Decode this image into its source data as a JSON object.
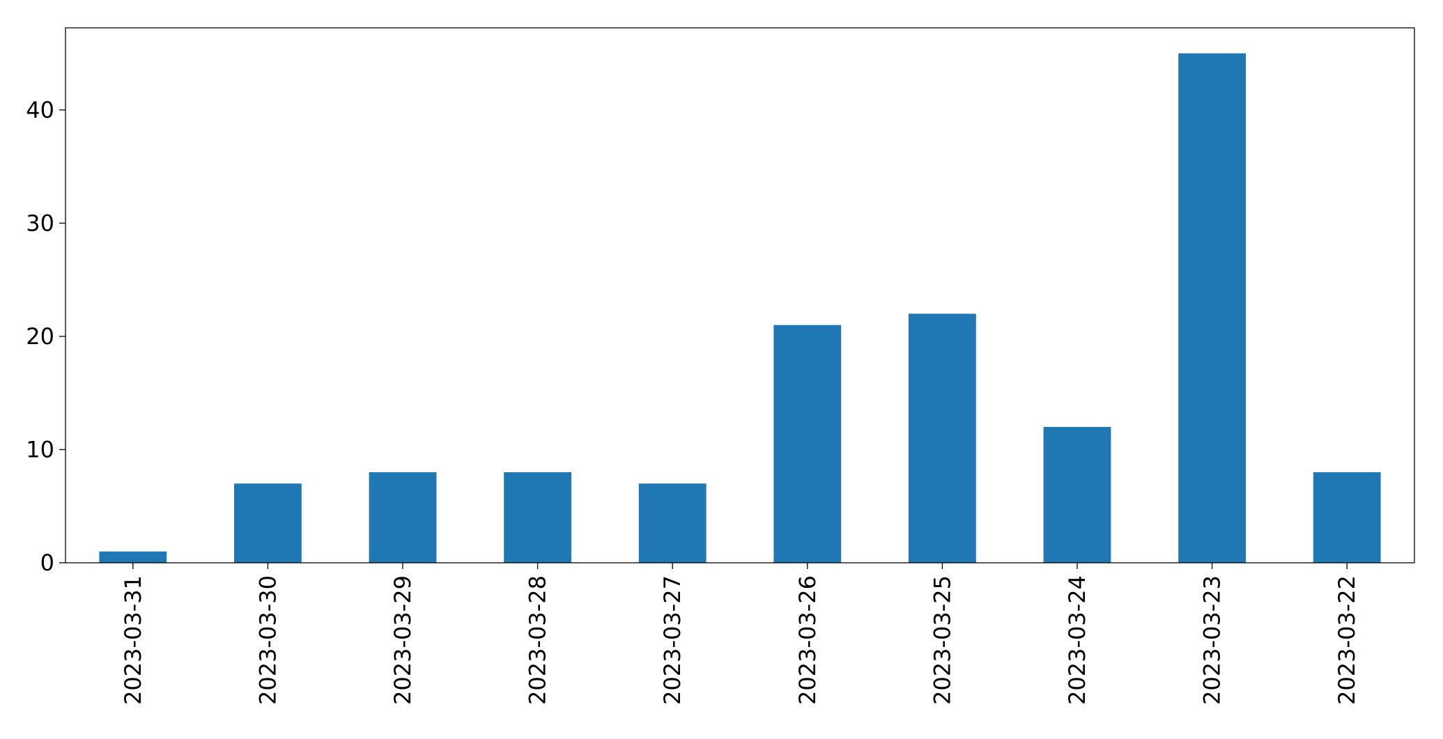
{
  "chart_data": {
    "type": "bar",
    "categories": [
      "2023-03-31",
      "2023-03-30",
      "2023-03-29",
      "2023-03-28",
      "2023-03-27",
      "2023-03-26",
      "2023-03-25",
      "2023-03-24",
      "2023-03-23",
      "2023-03-22"
    ],
    "values": [
      1,
      7,
      8,
      8,
      7,
      21,
      22,
      12,
      45,
      8
    ],
    "color": "#1f77b4",
    "ylim": [
      0,
      47.25
    ],
    "yticks": [
      0,
      10,
      20,
      30,
      40
    ],
    "grid": false
  }
}
